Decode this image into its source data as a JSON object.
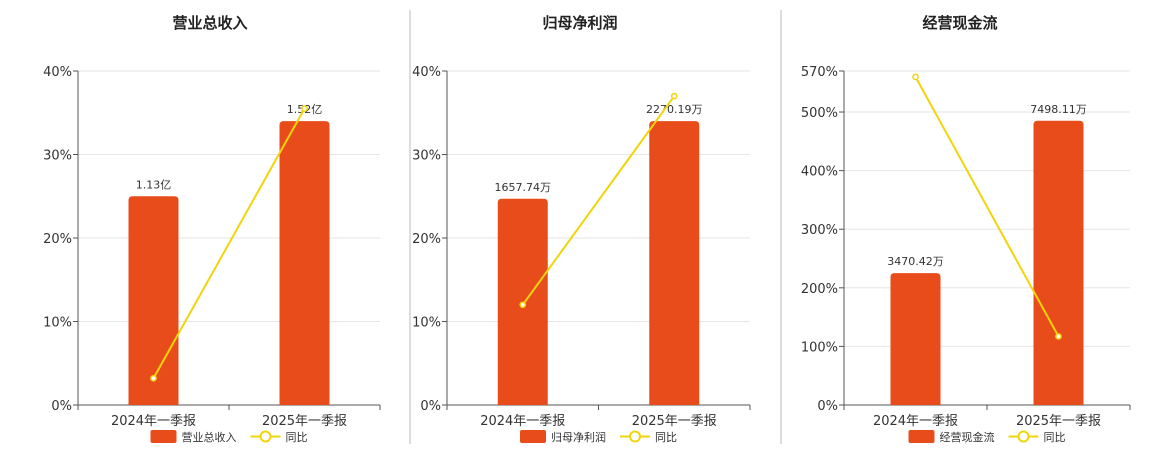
{
  "colors": {
    "bar": "#E84C1A",
    "line": "#F2D40C",
    "grid": "#e6e6e6",
    "axis": "#555555",
    "divider": "#bbbbbb"
  },
  "chart_data": [
    {
      "type": "bar",
      "title": "营业总收入",
      "categories": [
        "2024年一季报",
        "2025年一季报"
      ],
      "bar_series": {
        "name": "营业总收入",
        "values": [
          25,
          34
        ],
        "labels": [
          "1.13亿",
          "1.52亿"
        ]
      },
      "line_series": {
        "name": "同比",
        "values": [
          3.2,
          35.5
        ]
      },
      "ylim": [
        0,
        40
      ],
      "yticks": [
        0,
        10,
        20,
        30,
        40
      ],
      "ytick_labels": [
        "0%",
        "10%",
        "20%",
        "30%",
        "40%"
      ]
    },
    {
      "type": "bar",
      "title": "归母净利润",
      "categories": [
        "2024年一季报",
        "2025年一季报"
      ],
      "bar_series": {
        "name": "归母净利润",
        "values": [
          24.7,
          34
        ],
        "labels": [
          "1657.74万",
          "2270.19万"
        ]
      },
      "line_series": {
        "name": "同比",
        "values": [
          12,
          37
        ]
      },
      "ylim": [
        0,
        40
      ],
      "yticks": [
        0,
        10,
        20,
        30,
        40
      ],
      "ytick_labels": [
        "0%",
        "10%",
        "20%",
        "30%",
        "40%"
      ]
    },
    {
      "type": "bar",
      "title": "经营现金流",
      "categories": [
        "2024年一季报",
        "2025年一季报"
      ],
      "bar_series": {
        "name": "经营现金流",
        "values": [
          225,
          485
        ],
        "labels": [
          "3470.42万",
          "7498.11万"
        ]
      },
      "line_series": {
        "name": "同比",
        "values": [
          560,
          117
        ]
      },
      "ylim": [
        0,
        570
      ],
      "yticks": [
        0,
        100,
        200,
        300,
        400,
        500,
        570
      ],
      "ytick_labels": [
        "0%",
        "100%",
        "200%",
        "300%",
        "400%",
        "500%",
        "570%"
      ]
    }
  ]
}
